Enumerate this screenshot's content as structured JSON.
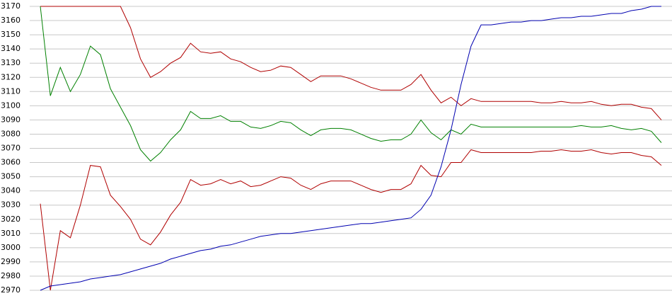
{
  "chart_data": {
    "type": "line",
    "categories": [
      null,
      null,
      null,
      null,
      null,
      null,
      null,
      null,
      null,
      null,
      null,
      null,
      null,
      null,
      null,
      null,
      null,
      null,
      null,
      null,
      null,
      null,
      null,
      null,
      null,
      null,
      null,
      null,
      null,
      null,
      null,
      null,
      null,
      null,
      null,
      null,
      null,
      null,
      null,
      null,
      null,
      null,
      null,
      null,
      null,
      null,
      null,
      null,
      null,
      null,
      null,
      null,
      null,
      null,
      null,
      null,
      null,
      null,
      null,
      null,
      null,
      null,
      null
    ],
    "series": [
      {
        "color": "#b00000",
        "values": [
          3170,
          3170,
          3170,
          3170,
          3170,
          3170,
          3170,
          3170,
          3170,
          3155,
          3133,
          3120,
          3124,
          3130,
          3134,
          3144,
          3138,
          3137,
          3138,
          3133,
          3131,
          3127,
          3124,
          3125,
          3128,
          3127,
          3122,
          3117,
          3121,
          3121,
          3121,
          3119,
          3116,
          3113,
          3111,
          3111,
          3111,
          3115,
          3122,
          3111,
          3102,
          3106,
          3100,
          3105,
          3103,
          3103,
          3103,
          3103,
          3103,
          3103,
          3102,
          3102,
          3103,
          3102,
          3102,
          3103,
          3101,
          3100,
          3101,
          3101,
          3099,
          3098,
          3090
        ]
      },
      {
        "color": "#008000",
        "values": [
          3170,
          3107,
          3127,
          3110,
          3122,
          3142,
          3136,
          3112,
          3099,
          3086,
          3069,
          3061,
          3067,
          3076,
          3083,
          3096,
          3091,
          3091,
          3093,
          3089,
          3089,
          3085,
          3084,
          3086,
          3089,
          3088,
          3083,
          3079,
          3083,
          3084,
          3084,
          3083,
          3080,
          3077,
          3075,
          3076,
          3076,
          3080,
          3090,
          3081,
          3076,
          3083,
          3080,
          3087,
          3085,
          3085,
          3085,
          3085,
          3085,
          3085,
          3085,
          3085,
          3085,
          3085,
          3086,
          3085,
          3085,
          3086,
          3084,
          3083,
          3084,
          3082,
          3074
        ]
      },
      {
        "color": "#b00000",
        "values": [
          3031,
          2970,
          3012,
          3007,
          3030,
          3058,
          3057,
          3037,
          3029,
          3020,
          3006,
          3002,
          3011,
          3023,
          3032,
          3048,
          3044,
          3045,
          3048,
          3045,
          3047,
          3043,
          3044,
          3047,
          3050,
          3049,
          3044,
          3041,
          3045,
          3047,
          3047,
          3047,
          3044,
          3041,
          3039,
          3041,
          3041,
          3045,
          3058,
          3051,
          3050,
          3060,
          3060,
          3069,
          3067,
          3067,
          3067,
          3067,
          3067,
          3067,
          3068,
          3068,
          3069,
          3068,
          3068,
          3069,
          3067,
          3066,
          3067,
          3067,
          3065,
          3064,
          3058
        ]
      },
      {
        "color": "#0000b0",
        "values": [
          2970,
          2973,
          2974,
          2975,
          2976,
          2978,
          2979,
          2980,
          2981,
          2983,
          2985,
          2987,
          2989,
          2992,
          2994,
          2996,
          2998,
          2999,
          3001,
          3002,
          3004,
          3006,
          3008,
          3009,
          3010,
          3010,
          3011,
          3012,
          3013,
          3014,
          3015,
          3016,
          3017,
          3017,
          3018,
          3019,
          3020,
          3021,
          3027,
          3037,
          3057,
          3083,
          3115,
          3142,
          3157,
          3157,
          3158,
          3159,
          3159,
          3160,
          3160,
          3161,
          3162,
          3162,
          3163,
          3163,
          3164,
          3165,
          3165,
          3167,
          3168,
          3170,
          3170
        ]
      }
    ],
    "ylim": [
      2970,
      3170
    ],
    "yticks": [
      2970,
      2980,
      2990,
      3000,
      3010,
      3020,
      3030,
      3040,
      3050,
      3060,
      3070,
      3080,
      3090,
      3100,
      3110,
      3120,
      3130,
      3140,
      3150,
      3160,
      3170
    ],
    "grid": true
  }
}
